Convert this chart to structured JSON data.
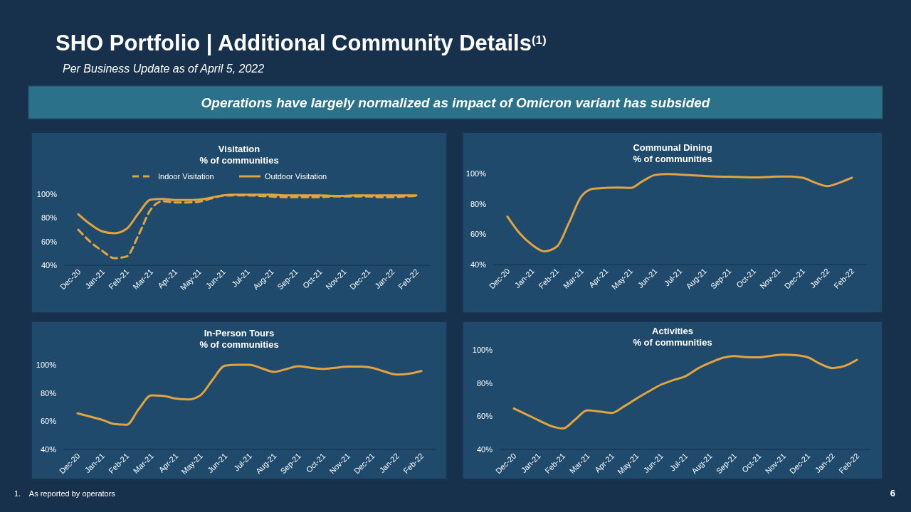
{
  "chart_data": [
    {
      "type": "line",
      "title": "Visitation",
      "subtitle": "% of communities",
      "annotations": [
        "SHO Portfolio | Additional Community Details$^{(1)}$",
        "Per Business Update as of April 5, 2022",
        "Operations have largely normalized as impact of Omicron variant has subsided",
        "1.    As reported by operators",
        "6"
      ],
      "categories": [
        "Dec-20",
        null,
        "Jan-21",
        null,
        "Feb-21",
        null,
        "Mar-21",
        null,
        "Apr-21",
        null,
        "May-21",
        null,
        "Jun-21",
        null,
        "Jul-21",
        null,
        "Aug-21",
        null,
        "Sep-21",
        null,
        "Oct-21",
        null,
        "Nov-21",
        null,
        "Dec-21",
        null,
        "Jan-22",
        null,
        "Feb-22"
      ],
      "series": [
        {
          "name": "Indoor Visitation",
          "color": "#e3a33f",
          "line_style": "dashed",
          "values": [
            70,
            59.7,
            52,
            46,
            47.4,
            65.7,
            87,
            94,
            93,
            93,
            93.6,
            96.3,
            98.6,
            99,
            99,
            98.5,
            98,
            97.5,
            97.5,
            97.5,
            97.5,
            98,
            98,
            98,
            98,
            97.5,
            97.5,
            98,
            98.5
          ]
        },
        {
          "name": "Outdoor Visitation",
          "color": "#e3a33f",
          "line_style": "solid",
          "values": [
            83,
            74.6,
            68.5,
            67,
            70.7,
            84,
            95.4,
            96,
            95,
            95,
            95.4,
            97,
            99,
            99.5,
            99.5,
            99.5,
            99.5,
            99,
            99,
            99,
            99,
            98.5,
            98.5,
            99,
            99,
            99,
            99,
            99,
            99
          ]
        }
      ],
      "ylim": [
        40,
        100
      ],
      "yticks": [
        {
          "value": 40,
          "label": "40%"
        },
        {
          "value": 60,
          "label": "60%"
        },
        {
          "value": 80,
          "label": "80%"
        },
        {
          "value": 100,
          "label": "100%"
        }
      ],
      "legend": "top"
    },
    {
      "type": "line",
      "title": "Communal Dining",
      "subtitle": "% of communities",
      "categories": [
        "Dec-20",
        null,
        "Jan-21",
        null,
        "Feb-21",
        null,
        "Mar-21",
        null,
        "Apr-21",
        null,
        "May-21",
        null,
        "Jun-21",
        null,
        "Jul-21",
        null,
        "Aug-21",
        null,
        "Sep-21",
        null,
        "Oct-21",
        null,
        "Nov-21",
        null,
        "Dec-21",
        null,
        "Jan-22",
        null,
        "Feb-22"
      ],
      "series": [
        {
          "color": "#e3a33f",
          "values": [
            71.6,
            60.5,
            53,
            48.7,
            51.7,
            67.5,
            84.8,
            90,
            90.5,
            90.8,
            90.5,
            95,
            99,
            99.6,
            99.3,
            98.8,
            98.4,
            98,
            97.9,
            97.7,
            97.4,
            97.7,
            98,
            98,
            97.2,
            94,
            91.7,
            94,
            97.2
          ]
        }
      ],
      "ylim": [
        40,
        100
      ],
      "yticks": [
        {
          "value": 40,
          "label": "40%"
        },
        {
          "value": 60,
          "label": "60%"
        },
        {
          "value": 80,
          "label": "80%"
        },
        {
          "value": 100,
          "label": "100%"
        }
      ]
    },
    {
      "type": "line",
      "title": "In-Person Tours",
      "subtitle": "% of communities",
      "categories": [
        "Dec-20",
        null,
        "Jan-21",
        null,
        "Feb-21",
        null,
        "Mar-21",
        null,
        "Apr-21",
        null,
        "May-21",
        null,
        "Jun-21",
        null,
        "Jul-21",
        null,
        "Aug-21",
        null,
        "Sep-21",
        null,
        "Oct-21",
        null,
        "Nov-21",
        null,
        "Dec-21",
        null,
        "Jan-22",
        null,
        "Feb-22"
      ],
      "series": [
        {
          "color": "#e3a33f",
          "values": [
            65.6,
            63.3,
            61,
            58,
            57.5,
            68.8,
            78.3,
            77.9,
            76,
            75.4,
            78.3,
            89.4,
            99.4,
            100,
            100,
            97.5,
            95,
            97,
            99,
            97.9,
            97.1,
            97.9,
            98.8,
            98.8,
            97.9,
            95.2,
            93.1,
            93.7,
            95.6
          ]
        }
      ],
      "ylim": [
        40,
        100
      ],
      "yticks": [
        {
          "value": 40,
          "label": "40%"
        },
        {
          "value": 60,
          "label": "60%"
        },
        {
          "value": 80,
          "label": "80%"
        },
        {
          "value": 100,
          "label": "100%"
        }
      ]
    },
    {
      "type": "line",
      "title": "Activities",
      "subtitle": "% of communities",
      "categories": [
        "Dec-20",
        null,
        "Jan-21",
        null,
        "Feb-21",
        null,
        "Mar-21",
        null,
        "Apr-21",
        null,
        "May-21",
        null,
        "Jun-21",
        null,
        "Jul-21",
        null,
        "Aug-21",
        null,
        "Sep-21",
        null,
        "Oct-21",
        null,
        "Nov-21",
        null,
        "Dec-21",
        null,
        "Jan-22",
        null,
        "Feb-22"
      ],
      "series": [
        {
          "color": "#e3a33f",
          "values": [
            64.7,
            61.2,
            57.6,
            54.2,
            52.6,
            58,
            63.6,
            62.8,
            62,
            66,
            70.6,
            74.9,
            79,
            81.7,
            84.1,
            88.7,
            92.2,
            95.1,
            96.3,
            95.6,
            95.5,
            96.4,
            97.1,
            96.8,
            95.5,
            91.6,
            89,
            90.3,
            94
          ]
        }
      ],
      "ylim": [
        40,
        100
      ],
      "yticks": [
        {
          "value": 40,
          "label": "40%"
        },
        {
          "value": 60,
          "label": "60%"
        },
        {
          "value": 80,
          "label": "80%"
        },
        {
          "value": 100,
          "label": "100%"
        }
      ]
    }
  ]
}
